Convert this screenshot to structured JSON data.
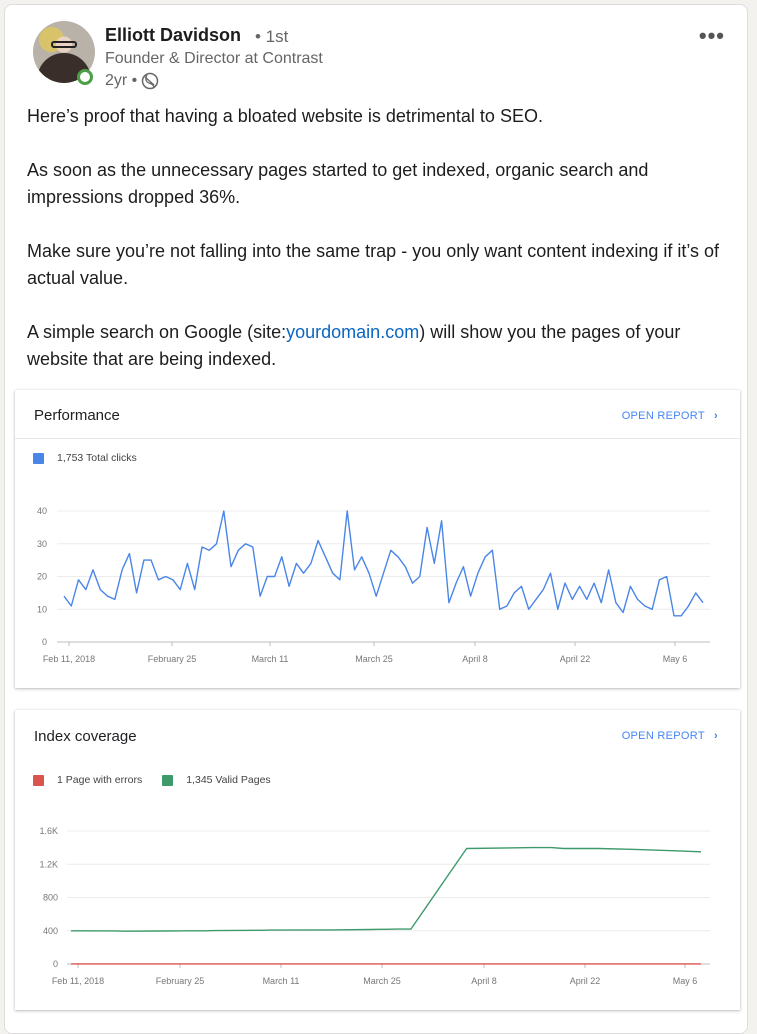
{
  "author": {
    "name": "Elliott Davidson",
    "degree": "• 1st",
    "headline": "Founder & Director at Contrast",
    "time": "2yr •"
  },
  "post": {
    "p1": "Here’s proof that having a bloated website is detrimental to SEO.",
    "p2": "As soon as the unnecessary pages started to get indexed, organic search and impressions dropped 36%.",
    "p3": "Make sure you’re not falling into the same trap - you only want content indexing if it’s of actual value.",
    "p4_before": "A simple search on Google (site:",
    "p4_link": "yourdomain.com",
    "p4_after": ") will show you the pages of your website that are being indexed."
  },
  "icons": {
    "more": "more-horizontal-icon",
    "visibility": "globe-icon"
  },
  "colors": {
    "clicks": "#4a86e8",
    "errors": "#d9534f",
    "valid": "#3d9a6a",
    "link": "#0a66c2"
  },
  "chart_data": [
    {
      "type": "line",
      "title": "Performance",
      "action": "OPEN REPORT",
      "legend": [
        {
          "label": "1,753 Total clicks",
          "color": "#4a86e8"
        }
      ],
      "ylim": [
        0,
        40
      ],
      "yticks": [
        "0",
        "10",
        "20",
        "30",
        "40"
      ],
      "xticks": [
        "Feb 11, 2018",
        "February 25",
        "March 11",
        "March 25",
        "April 8",
        "April 22",
        "May 6"
      ],
      "series": [
        {
          "name": "Total clicks",
          "values": [
            14,
            11,
            19,
            16,
            22,
            16,
            14,
            13,
            22,
            27,
            15,
            25,
            25,
            19,
            20,
            19,
            16,
            24,
            16,
            29,
            28,
            30,
            40,
            23,
            28,
            30,
            29,
            14,
            20,
            20,
            26,
            17,
            24,
            21,
            24,
            31,
            26,
            21,
            19,
            40,
            22,
            26,
            21,
            14,
            21,
            28,
            26,
            23,
            18,
            20,
            35,
            24,
            37,
            12,
            18,
            23,
            14,
            21,
            26,
            28,
            10,
            11,
            15,
            17,
            10,
            13,
            16,
            21,
            10,
            18,
            13,
            17,
            13,
            18,
            12,
            22,
            12,
            9,
            17,
            13,
            11,
            10,
            19,
            20,
            8,
            8,
            11,
            15,
            12
          ]
        }
      ]
    },
    {
      "type": "line",
      "title": "Index coverage",
      "action": "OPEN REPORT",
      "legend": [
        {
          "label": "1 Page with errors",
          "color": "#d9534f"
        },
        {
          "label": "1,345 Valid Pages",
          "color": "#3d9a6a"
        }
      ],
      "ylim": [
        0,
        1600
      ],
      "yticks": [
        "0",
        "400",
        "800",
        "1.2K",
        "1.6K"
      ],
      "xticks": [
        "Feb 11, 2018",
        "February 25",
        "March 11",
        "March 25",
        "April 8",
        "April 22",
        "May 6"
      ],
      "series": [
        {
          "name": "Valid Pages",
          "x": [
            0,
            30,
            36,
            60,
            72,
            73,
            75,
            76,
            88,
            92,
            97,
            130,
            135,
            178,
            205,
            210,
            215,
            222,
            232,
            270,
            315,
            317,
            324,
            328,
            336,
            360,
            382,
            415,
            430
          ],
          "values": [
            400,
            398,
            395,
            397,
            398,
            398,
            398,
            400,
            400,
            400,
            402,
            405,
            408,
            410,
            415,
            418,
            418,
            420,
            420,
            1390,
            1400,
            1400,
            1400,
            1400,
            1390,
            1390,
            1380,
            1360,
            1350
          ]
        },
        {
          "name": "Page with errors",
          "x": [
            0,
            430
          ],
          "values": [
            1,
            1
          ]
        }
      ]
    }
  ]
}
